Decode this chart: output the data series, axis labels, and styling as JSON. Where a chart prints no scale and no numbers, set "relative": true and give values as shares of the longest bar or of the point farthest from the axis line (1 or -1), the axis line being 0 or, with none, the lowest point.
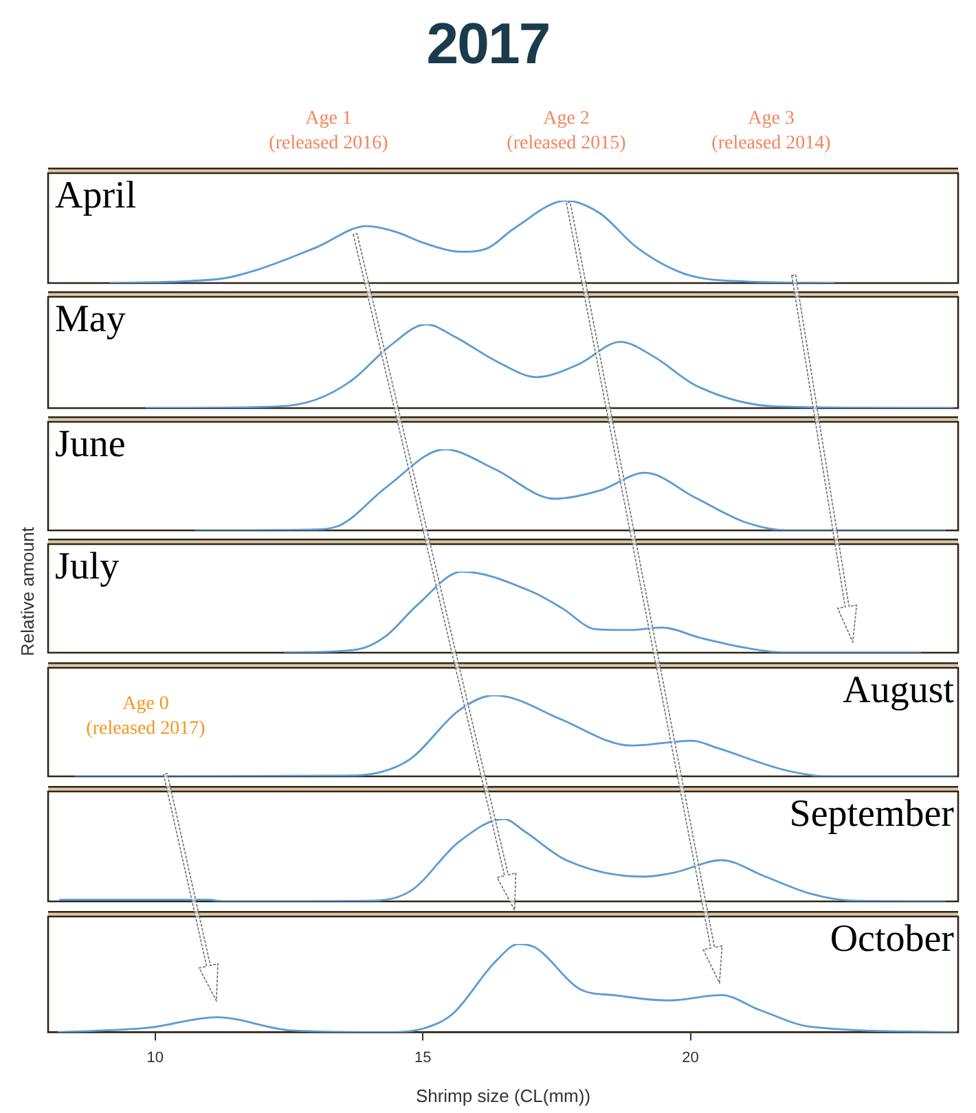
{
  "chart_data": [
    {
      "type": "line",
      "title": "2017",
      "subtitle": "April",
      "annotations": [
        "Age 1\n(released 2016)",
        "Age 2\n(released 2015)",
        "Age 3\n(released 2014)"
      ],
      "x": [
        9.15,
        11.2,
        11.9,
        13.0,
        13.95,
        14.5,
        15.0,
        15.73,
        16.2,
        16.7,
        17.68,
        18.3,
        19.0,
        19.9,
        21.0,
        22.7
      ],
      "series": [
        {
          "color": "#5b9bd5",
          "values": [
            0,
            0.05,
            0.16,
            0.43,
            0.69,
            0.62,
            0.49,
            0.38,
            0.42,
            0.66,
            1,
            0.85,
            0.43,
            0.11,
            0.02,
            0
          ]
        }
      ],
      "xlim": [
        8,
        25
      ],
      "relative": true,
      "tick_labels": false
    },
    {
      "type": "line",
      "subtitle": "May",
      "x": [
        9.82,
        12.3,
        13.0,
        13.67,
        14.4,
        15.06,
        15.6,
        16.4,
        17.13,
        17.9,
        18.69,
        19.3,
        20.13,
        21.6,
        24.92
      ],
      "series": [
        {
          "color": "#5b9bd5",
          "values": [
            0,
            0.02,
            0.1,
            0.33,
            0.75,
            1,
            0.85,
            0.55,
            0.37,
            0.52,
            0.79,
            0.62,
            0.26,
            0.02,
            0
          ]
        }
      ],
      "xlim": [
        8,
        25
      ],
      "relative": true,
      "tick_labels": false
    },
    {
      "type": "line",
      "subtitle": "June",
      "x": [
        10.74,
        12.9,
        13.44,
        14.33,
        15.41,
        16.33,
        17.46,
        18.3,
        19.15,
        20.1,
        21.03,
        21.8,
        24.77
      ],
      "series": [
        {
          "color": "#5b9bd5",
          "values": [
            0,
            0.01,
            0.06,
            0.54,
            1,
            0.76,
            0.39,
            0.49,
            0.71,
            0.4,
            0.1,
            0,
            0
          ]
        }
      ],
      "xlim": [
        8,
        25
      ],
      "relative": true,
      "tick_labels": false
    },
    {
      "type": "line",
      "subtitle": "July",
      "ylabel": "Relative amount",
      "x": [
        12.41,
        13.77,
        14.3,
        14.9,
        15.73,
        17.01,
        17.6,
        18.23,
        18.9,
        19.46,
        20.2,
        21.03,
        21.8,
        24.31
      ],
      "series": [
        {
          "color": "#5b9bd5",
          "values": [
            0,
            0.04,
            0.2,
            0.59,
            1,
            0.76,
            0.55,
            0.29,
            0.28,
            0.31,
            0.18,
            0.06,
            0,
            0
          ]
        }
      ],
      "xlim": [
        8,
        25
      ],
      "relative": true,
      "tick_labels": false
    },
    {
      "type": "line",
      "subtitle": "August",
      "annotations": [
        "Age 0\n(released 2017)"
      ],
      "x": [
        8.49,
        13.56,
        14.2,
        14.78,
        15.67,
        16.33,
        16.7,
        17.56,
        18.9,
        20.03,
        20.5,
        21.81,
        22.6,
        24.97
      ],
      "series": [
        {
          "color": "#5b9bd5",
          "values": [
            0,
            0.01,
            0.05,
            0.22,
            0.81,
            1,
            0.96,
            0.71,
            0.38,
            0.44,
            0.35,
            0.07,
            0,
            0
          ]
        }
      ],
      "xlim": [
        8,
        25
      ],
      "relative": true,
      "tick_labels": false
    },
    {
      "type": "line",
      "subtitle": "September",
      "x": [
        8.21,
        11,
        11.3,
        14.12,
        14.78,
        15.67,
        16.51,
        16.9,
        17.68,
        19.13,
        19.7,
        20.58,
        21.4,
        22.26,
        23,
        24.77
      ],
      "series": [
        {
          "color": "#5b9bd5",
          "values": [
            0.02,
            0.02,
            0,
            0.01,
            0.13,
            0.72,
            1,
            0.85,
            0.5,
            0.3,
            0.35,
            0.5,
            0.3,
            0.09,
            0.01,
            0
          ]
        }
      ],
      "xlim": [
        8,
        25
      ],
      "relative": true,
      "tick_labels": false
    },
    {
      "type": "line",
      "subtitle": "October",
      "xlabel": "Shrimp size (CL(mm))",
      "x": [
        8.18,
        9.87,
        11.15,
        12.55,
        14.4,
        15.0,
        15.56,
        16.34,
        16.79,
        17.1,
        17.96,
        18.56,
        19.58,
        20.58,
        21.3,
        22.26,
        24.97
      ],
      "series": [
        {
          "color": "#5b9bd5",
          "values": [
            0,
            0.05,
            0.17,
            0.02,
            0,
            0.04,
            0.21,
            0.79,
            1,
            0.96,
            0.48,
            0.42,
            0.36,
            0.42,
            0.25,
            0.06,
            0
          ]
        }
      ],
      "xlim": [
        8,
        25
      ],
      "xticks": [
        10,
        15,
        20
      ],
      "relative": true,
      "tick_labels": "x"
    }
  ]
}
